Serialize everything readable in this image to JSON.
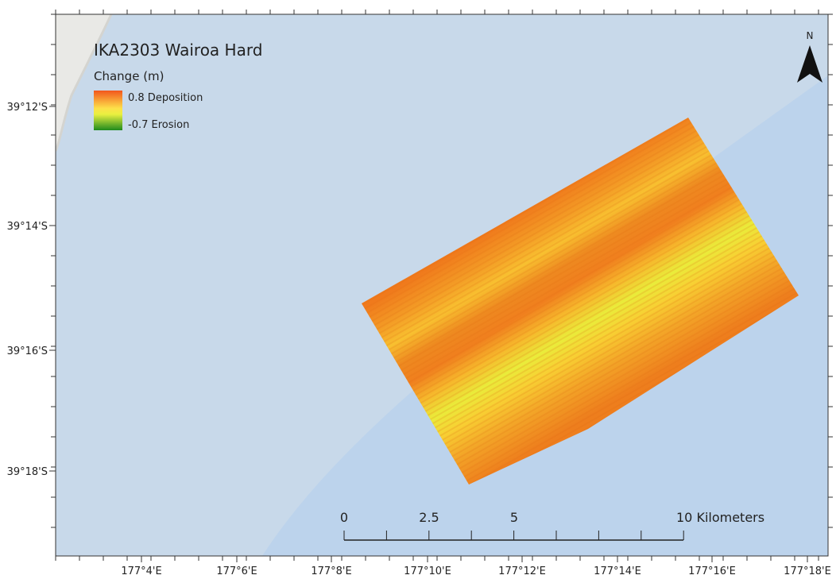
{
  "title": "IKA2303 Wairoa Hard",
  "legend": {
    "title": "Change (m)",
    "max_label": "0.8 Deposition",
    "min_label": "-0.7 Erosion"
  },
  "north_arrow": "N",
  "lat_ticks": [
    "39°12'S",
    "39°14'S",
    "39°16'S",
    "39°18'S"
  ],
  "lon_ticks": [
    "177°4'E",
    "177°6'E",
    "177°8'E",
    "177°10'E",
    "177°12'E",
    "177°14'E",
    "177°16'E",
    "177°18'E"
  ],
  "scale_bar": {
    "labels": [
      "0",
      "2.5",
      "5",
      "10 Kilometers"
    ]
  }
}
